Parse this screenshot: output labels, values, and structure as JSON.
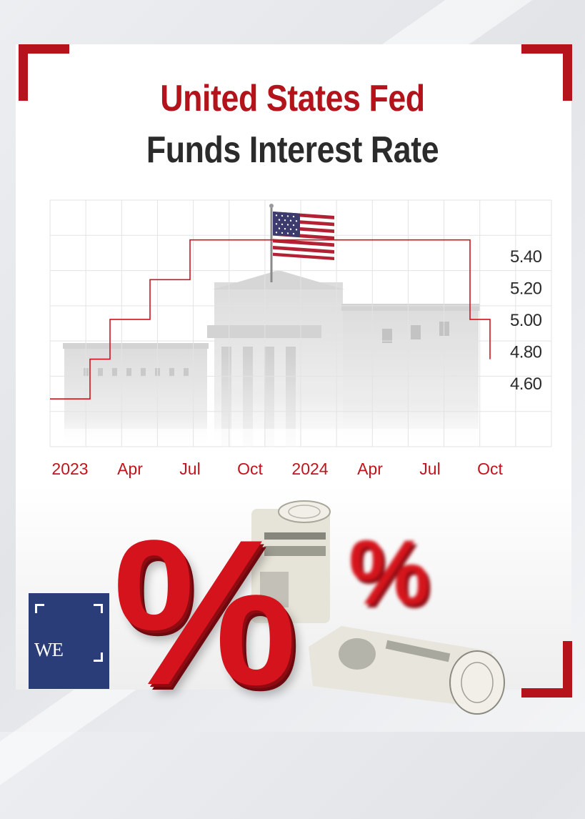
{
  "title_line1": "United States Fed",
  "title_line2": "Funds Interest Rate",
  "colors": {
    "accent_red": "#b3131b",
    "title_dark": "#2b2b2b",
    "line_red": "#d0141c",
    "brand_blue": "#2b3d78"
  },
  "brand": {
    "mark": "WE"
  },
  "symbols": {
    "percent_large": "%",
    "percent_small": "%"
  },
  "chart_data": {
    "type": "line",
    "step": true,
    "title": "United States Fed Funds Interest Rate",
    "x": [
      "2022-12",
      "2023-01",
      "2023-02",
      "2023-03",
      "2023-04",
      "2023-05",
      "2023-06",
      "2023-07",
      "2023-08",
      "2023-09",
      "2023-10",
      "2023-11",
      "2023-12",
      "2024-01",
      "2024-02",
      "2024-03",
      "2024-04",
      "2024-05",
      "2024-06",
      "2024-07",
      "2024-08",
      "2024-09",
      "2024-10"
    ],
    "values": [
      4.5,
      4.5,
      4.75,
      5.0,
      5.0,
      5.25,
      5.25,
      5.5,
      5.5,
      5.5,
      5.5,
      5.5,
      5.5,
      5.5,
      5.5,
      5.5,
      5.5,
      5.5,
      5.5,
      5.5,
      5.5,
      5.0,
      4.75
    ],
    "x_tick_labels": [
      "2023",
      "Apr",
      "Jul",
      "Oct",
      "2024",
      "Apr",
      "Jul",
      "Oct"
    ],
    "y_tick_labels": [
      "5.40",
      "5.20",
      "5.00",
      "4.80",
      "4.60"
    ],
    "ylim": [
      4.2,
      5.75
    ],
    "grid": true,
    "y_axis_side": "right"
  }
}
